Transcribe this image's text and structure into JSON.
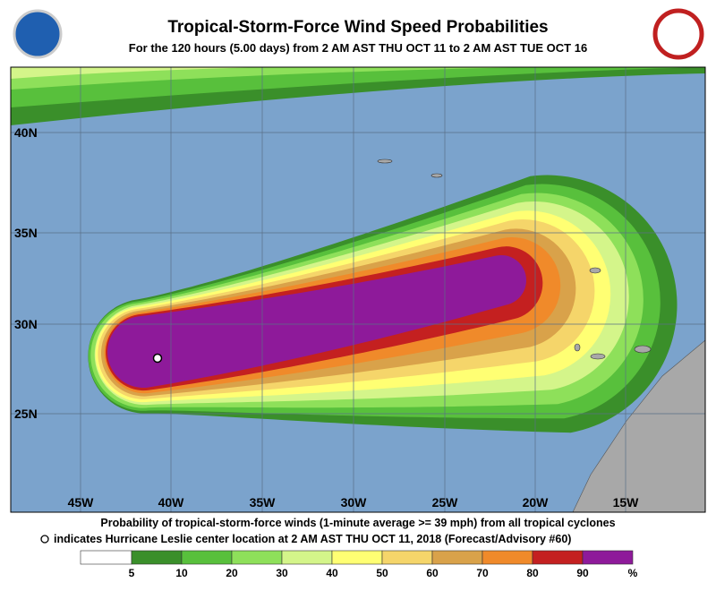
{
  "header": {
    "title": "Tropical-Storm-Force Wind Speed Probabilities",
    "subtitle": "For the 120 hours (5.00 days) from 2 AM AST THU OCT 11 to 2 AM AST TUE OCT 16"
  },
  "map": {
    "lat_labels": [
      "40N",
      "35N",
      "30N",
      "25N"
    ],
    "lon_labels": [
      "45W",
      "40W",
      "35W",
      "30W",
      "25W",
      "20W",
      "15W"
    ]
  },
  "caption": [
    "Probability of tropical-storm-force winds (1-minute average >= 39 mph) from all tropical cyclones",
    "indicates Hurricane Leslie center location at 2 AM AST THU OCT 11, 2018 (Forecast/Advisory #60)"
  ],
  "legend": {
    "labels": [
      "5",
      "10",
      "20",
      "30",
      "40",
      "50",
      "60",
      "70",
      "80",
      "90"
    ],
    "unit": "%",
    "colors": [
      "#ffffff",
      "#3a8f2a",
      "#58c03c",
      "#8ee05a",
      "#d4f58a",
      "#ffff73",
      "#f5d56a",
      "#d9a24a",
      "#f08a2a",
      "#c42020",
      "#8e1a9a"
    ]
  }
}
